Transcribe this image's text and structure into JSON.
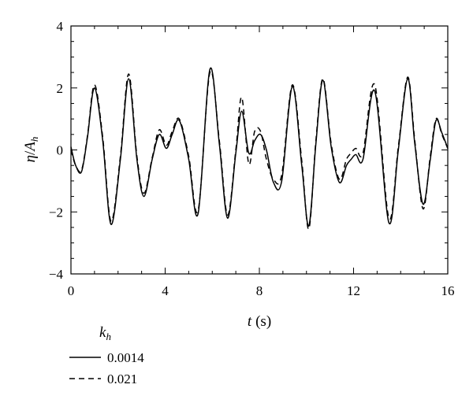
{
  "chart_data": {
    "type": "line",
    "title": "",
    "xlabel": "t (s)",
    "xlabel_var": "t",
    "xlabel_unit": "(s)",
    "ylabel": "η/A_h",
    "ylabel_eta": "η",
    "ylabel_slash": "/",
    "ylabel_A": "A",
    "ylabel_sub": "h",
    "xlim": [
      0,
      16
    ],
    "ylim": [
      -4,
      4
    ],
    "x_ticks": [
      0,
      4,
      8,
      12,
      16
    ],
    "y_ticks": [
      -4,
      -2,
      0,
      2,
      4
    ],
    "grid": false,
    "legend": {
      "placement": "bottom-left",
      "title_var": "k",
      "title_sub": "h"
    },
    "series": [
      {
        "name": "0.0014",
        "style": "solid",
        "x": [
          0,
          0.2,
          0.45,
          0.7,
          1.0,
          1.35,
          1.7,
          2.1,
          2.45,
          2.8,
          3.1,
          3.45,
          3.75,
          4.05,
          4.3,
          4.6,
          5.0,
          5.4,
          5.9,
          6.3,
          6.65,
          7.0,
          7.25,
          7.55,
          7.8,
          8.05,
          8.3,
          8.6,
          8.95,
          9.4,
          9.8,
          10.1,
          10.4,
          10.7,
          11.05,
          11.4,
          11.7,
          11.9,
          12.1,
          12.4,
          12.9,
          13.5,
          13.9,
          14.3,
          14.6,
          14.95,
          15.25,
          15.5,
          15.75,
          16.0
        ],
        "values": [
          0.1,
          -0.5,
          -0.7,
          0.4,
          2.0,
          0.3,
          -2.4,
          -0.3,
          2.3,
          -0.3,
          -1.5,
          -0.3,
          0.5,
          0.05,
          0.5,
          0.95,
          -0.3,
          -2.05,
          2.6,
          0.2,
          -2.2,
          -0.1,
          1.25,
          -0.1,
          0.3,
          0.5,
          0.0,
          -1.05,
          -1.0,
          2.05,
          -0.5,
          -2.45,
          0.2,
          2.25,
          0.1,
          -1.05,
          -0.5,
          -0.3,
          -0.15,
          -0.3,
          1.9,
          -2.35,
          0.0,
          2.3,
          0.2,
          -1.75,
          -0.35,
          0.95,
          0.55,
          0.05
        ]
      },
      {
        "name": "0.021",
        "style": "dashed",
        "x": [
          0,
          0.2,
          0.45,
          0.7,
          1.0,
          1.35,
          1.7,
          2.1,
          2.45,
          2.8,
          3.1,
          3.45,
          3.75,
          4.05,
          4.3,
          4.6,
          5.0,
          5.4,
          5.9,
          6.3,
          6.65,
          7.0,
          7.25,
          7.55,
          7.8,
          8.05,
          8.3,
          8.6,
          8.95,
          9.4,
          9.8,
          10.1,
          10.4,
          10.7,
          11.05,
          11.4,
          11.7,
          11.9,
          12.1,
          12.4,
          12.9,
          13.5,
          13.9,
          14.3,
          14.6,
          14.95,
          15.25,
          15.5,
          15.75,
          16.0
        ],
        "values": [
          0.0,
          -0.5,
          -0.65,
          0.45,
          2.1,
          0.4,
          -2.3,
          -0.2,
          2.45,
          -0.2,
          -1.4,
          -0.25,
          0.65,
          0.15,
          0.6,
          1.0,
          -0.2,
          -1.95,
          2.5,
          0.3,
          -2.1,
          0.0,
          1.7,
          -0.45,
          0.6,
          0.6,
          -0.3,
          -0.95,
          -0.8,
          2.1,
          -0.35,
          -2.55,
          0.3,
          2.3,
          0.2,
          -0.95,
          -0.3,
          -0.1,
          0.05,
          -0.1,
          2.1,
          -2.2,
          0.1,
          2.35,
          0.3,
          -1.9,
          -0.25,
          1.0,
          0.5,
          0.05
        ]
      }
    ]
  }
}
